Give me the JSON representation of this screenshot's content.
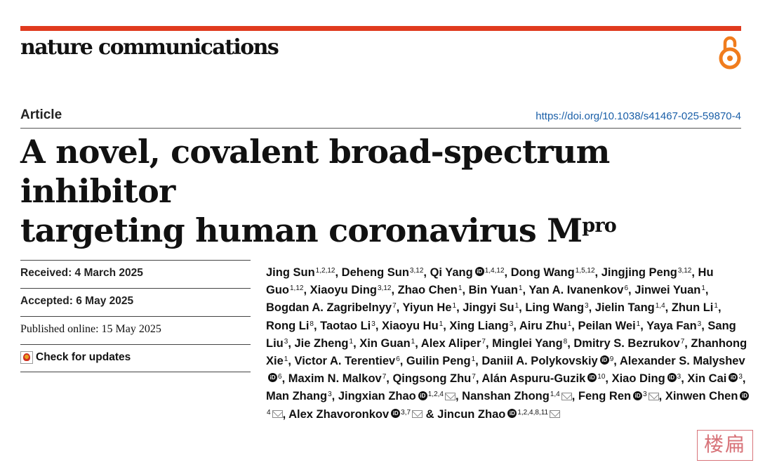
{
  "journal": {
    "name": "nature communications"
  },
  "article": {
    "type": "Article",
    "doi": "https://doi.org/10.1038/s41467-025-59870-4",
    "title_line1": "A novel, covalent broad-spectrum inhibitor",
    "title_line2": "targeting human coronavirus M",
    "title_sup": "pro"
  },
  "meta": {
    "received": "Received: 4 March 2025",
    "accepted": "Accepted: 6 May 2025",
    "published": "Published online: 15 May 2025",
    "check_updates": "Check for updates"
  },
  "authors": [
    {
      "name": "Jing Sun",
      "aff": "1,2,12"
    },
    {
      "name": "Deheng Sun",
      "aff": "3,12"
    },
    {
      "name": "Qi Yang",
      "aff": "1,4,12",
      "orcid": true
    },
    {
      "name": "Dong Wang",
      "aff": "1,5,12"
    },
    {
      "name": "Jingjing Peng",
      "aff": "3,12"
    },
    {
      "name": "Hu Guo",
      "aff": "1,12"
    },
    {
      "name": "Xiaoyu Ding",
      "aff": "3,12"
    },
    {
      "name": "Zhao Chen",
      "aff": "1"
    },
    {
      "name": "Bin Yuan",
      "aff": "1"
    },
    {
      "name": "Yan A. Ivanenkov",
      "aff": "6"
    },
    {
      "name": "Jinwei Yuan",
      "aff": "1"
    },
    {
      "name": "Bogdan A. Zagribelnyy",
      "aff": "7"
    },
    {
      "name": "Yiyun He",
      "aff": "1"
    },
    {
      "name": "Jingyi Su",
      "aff": "1"
    },
    {
      "name": "Ling Wang",
      "aff": "3"
    },
    {
      "name": "Jielin Tang",
      "aff": "1,4"
    },
    {
      "name": "Zhun Li",
      "aff": "1"
    },
    {
      "name": "Rong Li",
      "aff": "8"
    },
    {
      "name": "Taotao Li",
      "aff": "3"
    },
    {
      "name": "Xiaoyu Hu",
      "aff": "1"
    },
    {
      "name": "Xing Liang",
      "aff": "3"
    },
    {
      "name": "Airu Zhu",
      "aff": "1"
    },
    {
      "name": "Peilan Wei",
      "aff": "1"
    },
    {
      "name": "Yaya Fan",
      "aff": "3"
    },
    {
      "name": "Sang Liu",
      "aff": "3"
    },
    {
      "name": "Jie Zheng",
      "aff": "1"
    },
    {
      "name": "Xin Guan",
      "aff": "1"
    },
    {
      "name": "Alex Aliper",
      "aff": "7"
    },
    {
      "name": "Minglei Yang",
      "aff": "8"
    },
    {
      "name": "Dmitry S. Bezrukov",
      "aff": "7"
    },
    {
      "name": "Zhanhong Xie",
      "aff": "1"
    },
    {
      "name": "Victor A. Terentiev",
      "aff": "6"
    },
    {
      "name": "Guilin Peng",
      "aff": "1"
    },
    {
      "name": "Daniil A. Polykovskiy",
      "aff": "9",
      "orcid": true
    },
    {
      "name": "Alexander S. Malyshev",
      "aff": "6",
      "orcid": true
    },
    {
      "name": "Maxim N. Malkov",
      "aff": "7"
    },
    {
      "name": "Qingsong Zhu",
      "aff": "7"
    },
    {
      "name": "Alán Aspuru-Guzik",
      "aff": "10",
      "orcid": true
    },
    {
      "name": "Xiao Ding",
      "aff": "3",
      "orcid": true
    },
    {
      "name": "Xin Cai",
      "aff": "3",
      "orcid": true
    },
    {
      "name": "Man Zhang",
      "aff": "3"
    },
    {
      "name": "Jingxian Zhao",
      "aff": "1,2,4",
      "orcid": true,
      "mail": true
    },
    {
      "name": "Nanshan Zhong",
      "aff": "1,4",
      "mail": true
    },
    {
      "name": "Feng Ren",
      "aff": "3",
      "orcid": true,
      "mail": true
    },
    {
      "name": "Xinwen Chen",
      "aff": "4",
      "orcid": true,
      "mail": true
    },
    {
      "name": "Alex Zhavoronkov",
      "aff": "3,7",
      "orcid": true,
      "mail": true,
      "sep": " & "
    },
    {
      "name": "Jincun Zhao",
      "aff": "1,2,4,8,11",
      "orcid": true,
      "mail": true,
      "sep": ""
    }
  ],
  "icons": {
    "orcid": "orcid-icon",
    "mail": "envelope-icon",
    "open_access": "open-access-lock-icon",
    "orcid_glyph": "iD"
  },
  "watermark": "楼扁",
  "colors": {
    "accent": "#e03a1e",
    "link": "#1a5fa8",
    "open_access": "#f07c1d"
  }
}
